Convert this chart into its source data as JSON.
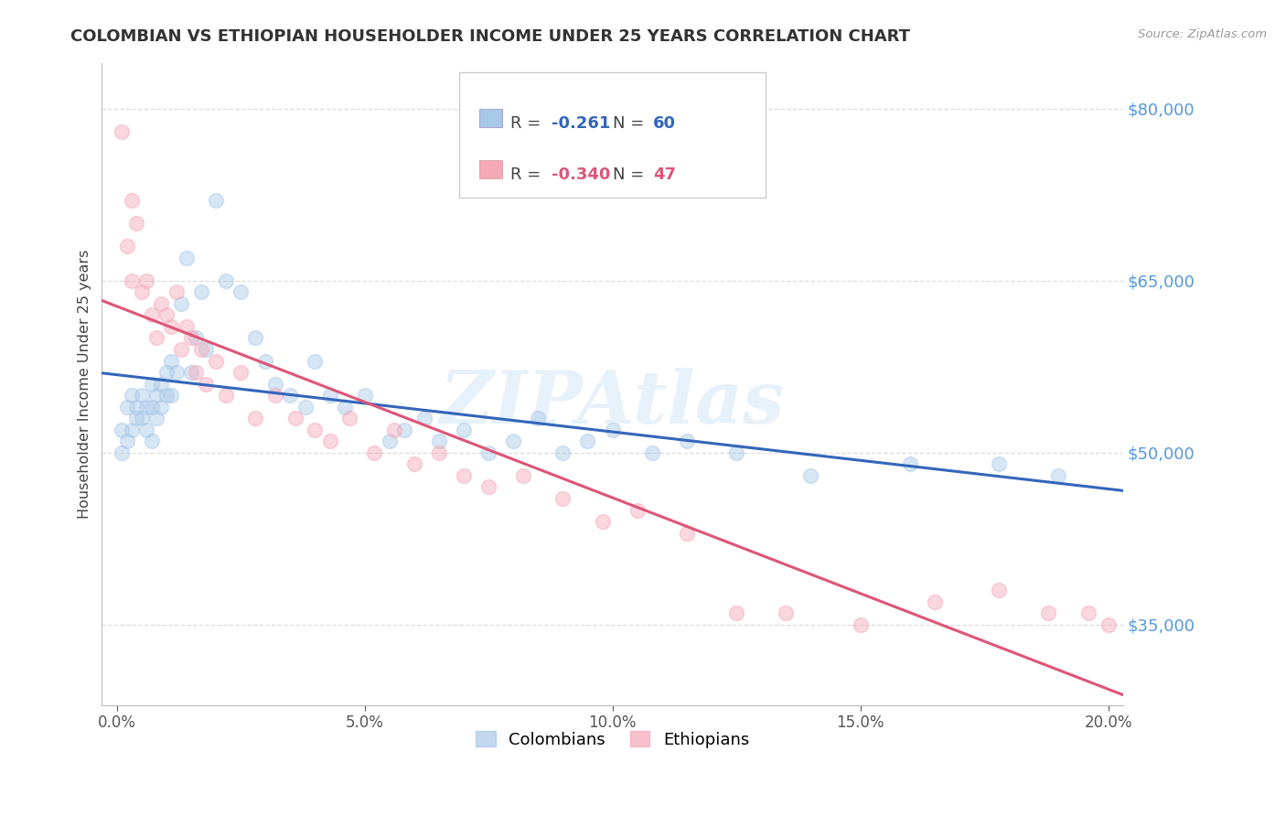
{
  "title": "COLOMBIAN VS ETHIOPIAN HOUSEHOLDER INCOME UNDER 25 YEARS CORRELATION CHART",
  "source": "Source: ZipAtlas.com",
  "ylabel": "Householder Income Under 25 years",
  "xlabel_ticks": [
    "0.0%",
    "5.0%",
    "10.0%",
    "15.0%",
    "20.0%"
  ],
  "xlabel_vals": [
    0.0,
    0.05,
    0.1,
    0.15,
    0.2
  ],
  "ytick_labels": [
    "$35,000",
    "$50,000",
    "$65,000",
    "$80,000"
  ],
  "ytick_vals": [
    35000,
    50000,
    65000,
    80000
  ],
  "ylim": [
    28000,
    84000
  ],
  "xlim": [
    -0.003,
    0.203
  ],
  "colombian_color": "#a8c8e8",
  "ethiopian_color": "#f4a8b8",
  "colombian_line_color": "#3366bb",
  "ethiopian_line_color": "#dd5577",
  "legend_r_col": "-0.261",
  "legend_n_col": "60",
  "legend_r_eth": "-0.340",
  "legend_n_eth": "47",
  "watermark": "ZIPAtlas",
  "colombians_x": [
    0.001,
    0.001,
    0.002,
    0.002,
    0.003,
    0.003,
    0.004,
    0.004,
    0.005,
    0.005,
    0.006,
    0.006,
    0.007,
    0.007,
    0.007,
    0.008,
    0.008,
    0.009,
    0.009,
    0.01,
    0.01,
    0.011,
    0.011,
    0.012,
    0.013,
    0.014,
    0.015,
    0.016,
    0.017,
    0.018,
    0.02,
    0.022,
    0.025,
    0.028,
    0.03,
    0.032,
    0.035,
    0.038,
    0.04,
    0.043,
    0.046,
    0.05,
    0.055,
    0.058,
    0.062,
    0.065,
    0.07,
    0.075,
    0.08,
    0.085,
    0.09,
    0.095,
    0.1,
    0.108,
    0.115,
    0.125,
    0.14,
    0.16,
    0.178,
    0.19
  ],
  "colombians_y": [
    52000,
    50000,
    54000,
    51000,
    55000,
    52000,
    53000,
    54000,
    55000,
    53000,
    54000,
    52000,
    56000,
    54000,
    51000,
    55000,
    53000,
    56000,
    54000,
    57000,
    55000,
    58000,
    55000,
    57000,
    63000,
    67000,
    57000,
    60000,
    64000,
    59000,
    72000,
    65000,
    64000,
    60000,
    58000,
    56000,
    55000,
    54000,
    58000,
    55000,
    54000,
    55000,
    51000,
    52000,
    53000,
    51000,
    52000,
    50000,
    51000,
    53000,
    50000,
    51000,
    52000,
    50000,
    51000,
    50000,
    48000,
    49000,
    49000,
    48000
  ],
  "ethiopians_x": [
    0.001,
    0.002,
    0.003,
    0.003,
    0.004,
    0.005,
    0.006,
    0.007,
    0.008,
    0.009,
    0.01,
    0.011,
    0.012,
    0.013,
    0.014,
    0.015,
    0.016,
    0.017,
    0.018,
    0.02,
    0.022,
    0.025,
    0.028,
    0.032,
    0.036,
    0.04,
    0.043,
    0.047,
    0.052,
    0.056,
    0.06,
    0.065,
    0.07,
    0.075,
    0.082,
    0.09,
    0.098,
    0.105,
    0.115,
    0.125,
    0.135,
    0.15,
    0.165,
    0.178,
    0.188,
    0.196,
    0.2
  ],
  "ethiopians_y": [
    78000,
    68000,
    65000,
    72000,
    70000,
    64000,
    65000,
    62000,
    60000,
    63000,
    62000,
    61000,
    64000,
    59000,
    61000,
    60000,
    57000,
    59000,
    56000,
    58000,
    55000,
    57000,
    53000,
    55000,
    53000,
    52000,
    51000,
    53000,
    50000,
    52000,
    49000,
    50000,
    48000,
    47000,
    48000,
    46000,
    44000,
    45000,
    43000,
    36000,
    36000,
    35000,
    37000,
    38000,
    36000,
    36000,
    35000
  ],
  "background_color": "#ffffff",
  "grid_color": "#dddddd",
  "marker_size": 130,
  "marker_alpha": 0.45,
  "marker_linewidth": 1.2,
  "col_r_color": "#3366bb",
  "eth_r_color": "#dd5577",
  "col_n_color": "#3366bb",
  "eth_n_color": "#dd5577"
}
